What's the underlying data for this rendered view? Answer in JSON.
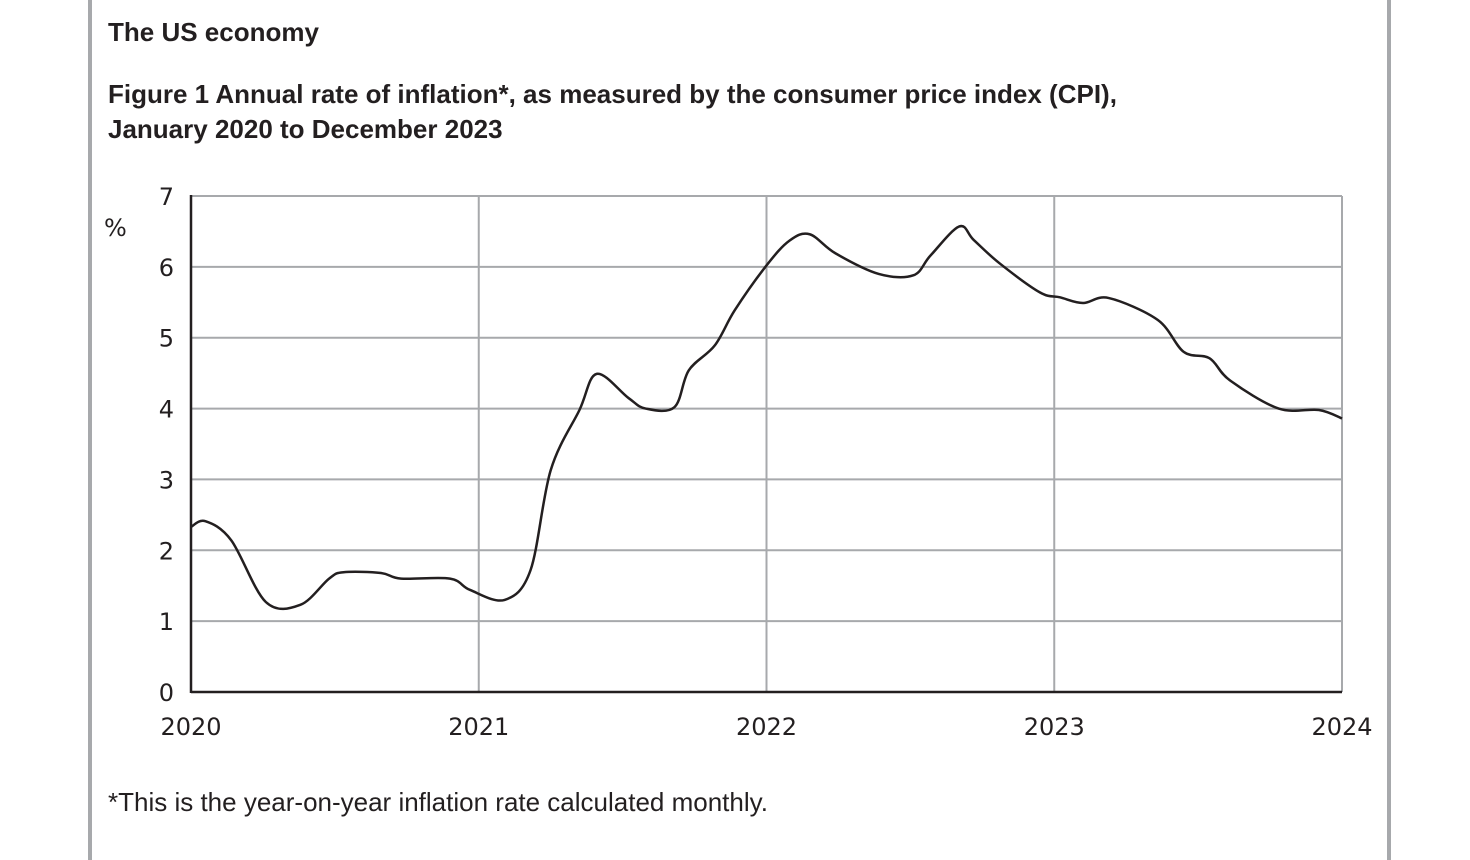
{
  "section_heading": "The US economy",
  "chart_data": {
    "type": "line",
    "title_line1": "Figure 1 Annual rate of inflation*, as measured by the consumer price index (CPI),",
    "title_line2": "January 2020 to December 2023",
    "xlabel": "",
    "ylabel": "%",
    "xlim": [
      2020,
      2024
    ],
    "ylim": [
      0,
      7
    ],
    "grid": true,
    "x_ticks": [
      "2020",
      "2021",
      "2022",
      "2023",
      "2024"
    ],
    "y_ticks": [
      "0",
      "1",
      "2",
      "3",
      "4",
      "5",
      "6",
      "7"
    ],
    "series": [
      {
        "name": "CPI inflation",
        "color": "#231f20",
        "x": [
          2020.0,
          2020.05,
          2020.14,
          2020.26,
          2020.38,
          2020.48,
          2020.53,
          2020.66,
          2020.73,
          2020.9,
          2020.97,
          2021.09,
          2021.18,
          2021.25,
          2021.35,
          2021.41,
          2021.52,
          2021.58,
          2021.68,
          2021.73,
          2021.82,
          2021.89,
          2022.0,
          2022.08,
          2022.15,
          2022.24,
          2022.39,
          2022.51,
          2022.57,
          2022.67,
          2022.72,
          2022.81,
          2022.95,
          2023.02,
          2023.1,
          2023.19,
          2023.36,
          2023.45,
          2023.54,
          2023.61,
          2023.78,
          2023.92,
          2024.0
        ],
        "y": [
          2.33,
          2.41,
          2.14,
          1.27,
          1.23,
          1.6,
          1.69,
          1.68,
          1.6,
          1.6,
          1.44,
          1.3,
          1.72,
          3.13,
          3.98,
          4.49,
          4.15,
          4.0,
          4.02,
          4.54,
          4.89,
          5.39,
          6.02,
          6.37,
          6.46,
          6.19,
          5.9,
          5.88,
          6.16,
          6.57,
          6.38,
          6.05,
          5.64,
          5.57,
          5.49,
          5.56,
          5.25,
          4.8,
          4.71,
          4.4,
          4.0,
          3.98,
          3.86
        ]
      }
    ],
    "footnote": "*This is the year-on-year inflation rate calculated monthly."
  }
}
